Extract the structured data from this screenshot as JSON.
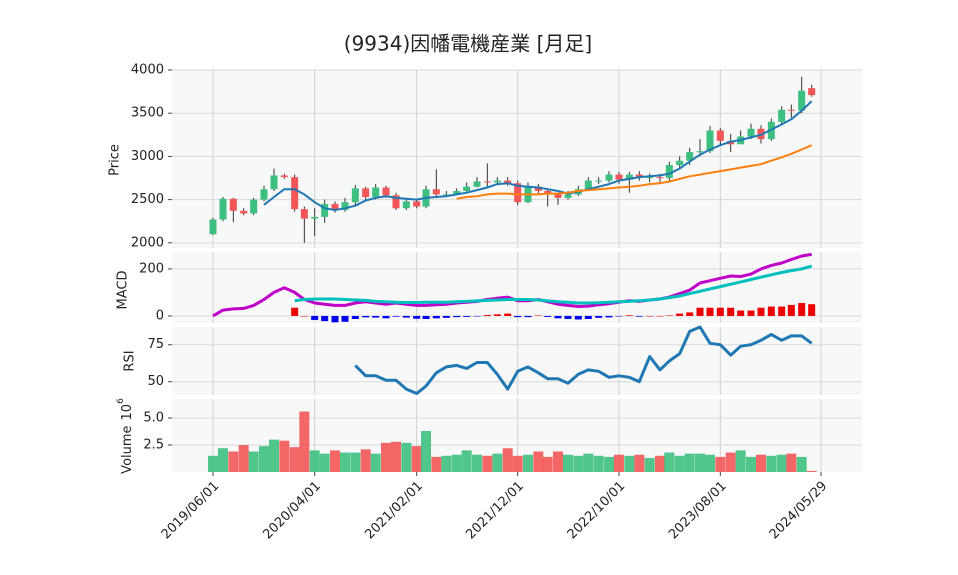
{
  "chart_data": {
    "type": "candlestick",
    "title": "(9934)因幡電機産業 [月足]",
    "x": [
      "2019-06-01",
      "2019-07-01",
      "2019-08-01",
      "2019-09-01",
      "2019-10-01",
      "2019-11-01",
      "2019-12-01",
      "2020-01-01",
      "2020-02-01",
      "2020-03-01",
      "2020-04-01",
      "2020-05-01",
      "2020-06-01",
      "2020-07-01",
      "2020-08-01",
      "2020-09-01",
      "2020-10-01",
      "2020-11-01",
      "2020-12-01",
      "2021-01-01",
      "2021-02-01",
      "2021-03-01",
      "2021-04-01",
      "2021-05-01",
      "2021-06-01",
      "2021-07-01",
      "2021-08-01",
      "2021-09-01",
      "2021-10-01",
      "2021-11-01",
      "2021-12-01",
      "2022-01-01",
      "2022-02-01",
      "2022-03-01",
      "2022-04-01",
      "2022-05-01",
      "2022-06-01",
      "2022-07-01",
      "2022-08-01",
      "2022-09-01",
      "2022-10-01",
      "2022-11-01",
      "2022-12-01",
      "2023-01-01",
      "2023-02-01",
      "2023-03-01",
      "2023-04-01",
      "2023-05-01",
      "2023-06-01",
      "2023-07-01",
      "2023-08-01",
      "2023-09-01",
      "2023-10-01",
      "2023-11-01",
      "2023-12-01",
      "2024-01-01",
      "2024-02-01",
      "2024-03-01",
      "2024-04-01",
      "2024-05-01"
    ],
    "xlim": [
      "2019-01-29",
      "2024-09-29"
    ],
    "xticks": [
      {
        "value": "2019-06-01",
        "label": "2019/06/01"
      },
      {
        "value": "2020-04-01",
        "label": "2020/04/01"
      },
      {
        "value": "2021-02-01",
        "label": "2021/02/01"
      },
      {
        "value": "2021-12-01",
        "label": "2021/12/01"
      },
      {
        "value": "2022-10-01",
        "label": "2022/10/01"
      },
      {
        "value": "2023-08-01",
        "label": "2023/08/01"
      },
      {
        "value": "2024-05-29",
        "label": "2024/05/29"
      }
    ],
    "grid": true,
    "up_color": "#3dbf7f",
    "down_color": "#f25656",
    "open": [
      2100,
      2270,
      2510,
      2370,
      2340,
      2500,
      2620,
      2780,
      2760,
      2390,
      2280,
      2300,
      2450,
      2380,
      2470,
      2630,
      2530,
      2640,
      2550,
      2400,
      2480,
      2420,
      2620,
      2560,
      2560,
      2600,
      2650,
      2710,
      2700,
      2720,
      2690,
      2470,
      2650,
      2600,
      2560,
      2520,
      2560,
      2620,
      2720,
      2720,
      2790,
      2730,
      2790,
      2760,
      2760,
      2750,
      2900,
      2950,
      3050,
      3060,
      3300,
      3180,
      3140,
      3230,
      3320,
      3200,
      3400,
      3540,
      3530,
      3790
    ],
    "high": [
      2290,
      2530,
      2520,
      2400,
      2520,
      2660,
      2860,
      2800,
      2790,
      2420,
      2400,
      2500,
      2480,
      2520,
      2670,
      2650,
      2680,
      2660,
      2580,
      2520,
      2500,
      2660,
      2850,
      2600,
      2630,
      2700,
      2760,
      2920,
      2760,
      2760,
      2720,
      2700,
      2680,
      2620,
      2580,
      2600,
      2660,
      2760,
      2760,
      2830,
      2820,
      2820,
      2830,
      2800,
      2800,
      2940,
      3000,
      3100,
      3200,
      3350,
      3330,
      3260,
      3300,
      3380,
      3360,
      3440,
      3580,
      3600,
      3920,
      3830
    ],
    "low": [
      2090,
      2250,
      2240,
      2320,
      2320,
      2480,
      2600,
      2740,
      2360,
      2000,
      2080,
      2230,
      2350,
      2360,
      2440,
      2500,
      2500,
      2520,
      2380,
      2380,
      2400,
      2400,
      2520,
      2530,
      2560,
      2590,
      2640,
      2640,
      2680,
      2660,
      2440,
      2460,
      2560,
      2420,
      2440,
      2500,
      2540,
      2600,
      2680,
      2700,
      2680,
      2580,
      2720,
      2700,
      2700,
      2720,
      2860,
      2900,
      3000,
      3040,
      3140,
      3050,
      3150,
      3200,
      3150,
      3180,
      3360,
      3450,
      3500,
      3690
    ],
    "close": [
      2270,
      2510,
      2370,
      2340,
      2500,
      2620,
      2780,
      2760,
      2390,
      2280,
      2300,
      2450,
      2380,
      2470,
      2630,
      2530,
      2640,
      2550,
      2400,
      2480,
      2420,
      2620,
      2560,
      2560,
      2600,
      2650,
      2710,
      2700,
      2720,
      2690,
      2470,
      2650,
      2600,
      2560,
      2520,
      2560,
      2620,
      2720,
      2720,
      2790,
      2730,
      2790,
      2760,
      2760,
      2750,
      2900,
      2950,
      3050,
      3060,
      3300,
      3180,
      3140,
      3230,
      3320,
      3200,
      3400,
      3540,
      3530,
      3760,
      3710
    ],
    "ylabel": "Price",
    "ylim": [
      1940,
      4000
    ],
    "yticks": [
      2000,
      2500,
      3000,
      3500,
      4000
    ],
    "series": [
      {
        "color": "#1f77b4",
        "values": [
          null,
          null,
          null,
          null,
          null,
          2440,
          2530,
          2620,
          2620,
          2560,
          2470,
          2400,
          2380,
          2400,
          2430,
          2490,
          2520,
          2540,
          2520,
          2510,
          2500,
          2520,
          2530,
          2540,
          2560,
          2580,
          2610,
          2640,
          2680,
          2690,
          2660,
          2650,
          2640,
          2620,
          2600,
          2570,
          2590,
          2620,
          2650,
          2680,
          2720,
          2740,
          2760,
          2770,
          2780,
          2800,
          2860,
          2940,
          3020,
          3080,
          3130,
          3170,
          3190,
          3220,
          3250,
          3310,
          3370,
          3430,
          3530,
          3640
        ]
      },
      {
        "color": "#ff7f0e",
        "values": [
          null,
          null,
          null,
          null,
          null,
          null,
          null,
          null,
          null,
          null,
          null,
          null,
          null,
          null,
          null,
          null,
          null,
          null,
          null,
          null,
          null,
          null,
          null,
          null,
          2510,
          2530,
          2540,
          2560,
          2570,
          2570,
          2560,
          2560,
          2560,
          2570,
          2570,
          2580,
          2600,
          2610,
          2620,
          2630,
          2640,
          2650,
          2660,
          2680,
          2690,
          2710,
          2740,
          2770,
          2790,
          2810,
          2830,
          2850,
          2870,
          2890,
          2910,
          2950,
          2990,
          3030,
          3080,
          3130
        ]
      }
    ],
    "macd": {
      "ylabel": "MACD",
      "ylim": [
        -30,
        272
      ],
      "yticks": [
        0,
        200
      ],
      "series": [
        {
          "color": "#c000c8",
          "values": [
            0,
            25,
            30,
            32,
            45,
            70,
            100,
            120,
            100,
            70,
            55,
            50,
            45,
            45,
            55,
            60,
            55,
            50,
            55,
            50,
            45,
            45,
            48,
            50,
            55,
            58,
            62,
            70,
            75,
            80,
            65,
            65,
            70,
            60,
            50,
            45,
            40,
            42,
            48,
            52,
            58,
            65,
            62,
            68,
            72,
            80,
            95,
            110,
            140,
            150,
            160,
            170,
            168,
            178,
            200,
            215,
            225,
            240,
            255,
            262
          ]
        },
        {
          "color": "#00bfbf",
          "values": [
            null,
            null,
            null,
            null,
            null,
            null,
            null,
            null,
            65,
            70,
            72,
            72,
            72,
            70,
            68,
            66,
            62,
            60,
            58,
            57,
            57,
            58,
            58,
            58,
            60,
            62,
            64,
            66,
            68,
            70,
            70,
            70,
            68,
            64,
            60,
            58,
            55,
            55,
            56,
            58,
            60,
            62,
            65,
            68,
            72,
            78,
            85,
            95,
            105,
            115,
            125,
            135,
            145,
            155,
            165,
            175,
            185,
            193,
            200,
            212
          ]
        }
      ],
      "histogram": [
        null,
        null,
        null,
        null,
        null,
        null,
        null,
        null,
        35,
        0,
        -17,
        -22,
        -27,
        -25,
        -13,
        -6,
        -7,
        -10,
        -3,
        -7,
        -12,
        -13,
        -10,
        -8,
        -5,
        -4,
        -2,
        4,
        7,
        10,
        -5,
        -5,
        2,
        -4,
        -10,
        -13,
        -15,
        -13,
        -8,
        -6,
        -2,
        3,
        -3,
        0,
        0,
        2,
        10,
        15,
        35,
        35,
        35,
        35,
        23,
        23,
        35,
        40,
        40,
        47,
        55,
        50
      ],
      "pos_color": "#ee0000",
      "neg_color": "#0000ee"
    },
    "rsi": {
      "ylabel": "RSI",
      "ylim": [
        41,
        87
      ],
      "yticks": [
        50,
        75
      ],
      "color": "#1f77b4",
      "values": [
        null,
        null,
        null,
        null,
        null,
        null,
        null,
        null,
        null,
        null,
        null,
        null,
        null,
        null,
        61,
        54,
        54,
        51,
        51,
        45,
        42,
        47,
        56,
        60,
        61,
        59,
        63,
        63,
        55,
        45,
        57,
        60,
        56,
        52,
        52,
        49,
        55,
        58,
        57,
        53,
        54,
        53,
        50,
        67,
        58,
        64,
        69,
        84,
        87,
        76,
        75,
        68,
        74,
        75,
        78,
        82,
        78,
        81,
        81,
        76
      ]
    },
    "volume": {
      "ylabel": "Volume",
      "scale": "10",
      "scale_exp": "6",
      "ylim": [
        0,
        6.76
      ],
      "yticks": [
        2.5,
        {
          "value": 5,
          "label": "5.0"
        }
      ],
      "values": [
        1.5,
        2.2,
        1.9,
        2.5,
        1.9,
        2.4,
        3.0,
        2.9,
        2.3,
        5.6,
        2.0,
        1.7,
        2.0,
        1.8,
        1.8,
        2.1,
        1.7,
        2.7,
        2.8,
        2.7,
        2.4,
        3.8,
        1.4,
        1.5,
        1.6,
        2.0,
        1.6,
        1.5,
        1.7,
        2.2,
        1.5,
        1.6,
        1.9,
        1.4,
        1.9,
        1.6,
        1.5,
        1.7,
        1.5,
        1.4,
        1.6,
        1.5,
        1.6,
        1.3,
        1.5,
        1.8,
        1.5,
        1.7,
        1.7,
        1.6,
        1.4,
        1.8,
        2.0,
        1.4,
        1.6,
        1.5,
        1.6,
        1.7,
        1.4,
        0.1
      ]
    }
  }
}
